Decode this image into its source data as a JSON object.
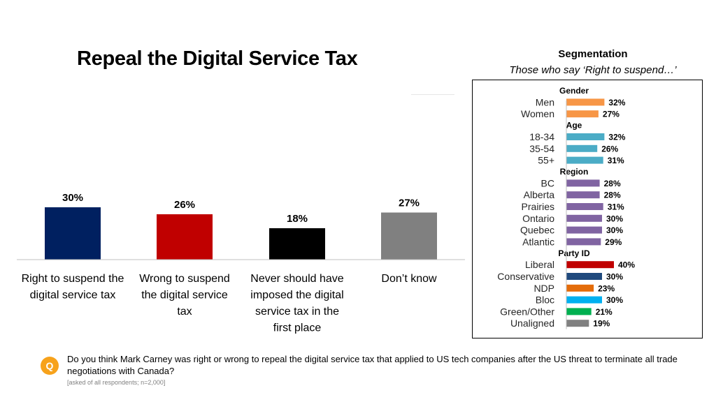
{
  "title": "Repeal the Digital Service Tax",
  "segmentation": {
    "heading": "Segmentation",
    "subheading": "Those who say ‘Right to suspend…’"
  },
  "question": {
    "icon_letter": "Q",
    "text": "Do you think Mark Carney was right or wrong to repeal the digital service tax that applied to US tech companies after the US threat to terminate all trade negotiations with Canada?",
    "note": "[asked of all respondents; n=2,000]"
  },
  "chart_data": [
    {
      "type": "bar",
      "categories": [
        [
          "Right to suspend the",
          "digital service tax"
        ],
        [
          "Wrong to suspend",
          "the digital service",
          "tax"
        ],
        [
          "Never should have",
          "imposed the digital",
          "service tax in the",
          "first place"
        ],
        [
          "Don’t know"
        ]
      ],
      "values": [
        30,
        26,
        18,
        27
      ],
      "labels": [
        "30%",
        "26%",
        "18%",
        "27%"
      ],
      "colors": [
        "#002060",
        "#c00000",
        "#000000",
        "#808080"
      ],
      "ylim": [
        0,
        40
      ]
    },
    {
      "type": "bar",
      "orientation": "horizontal",
      "xlim": [
        0,
        40
      ],
      "groups": [
        {
          "name": "Gender",
          "color": "#f79646",
          "items": [
            {
              "label": "Men",
              "value": 32,
              "text": "32%"
            },
            {
              "label": "Women",
              "value": 27,
              "text": "27%"
            }
          ]
        },
        {
          "name": "Age",
          "color": "#4bacc6",
          "items": [
            {
              "label": "18-34",
              "value": 32,
              "text": "32%"
            },
            {
              "label": "35-54",
              "value": 26,
              "text": "26%"
            },
            {
              "label": "55+",
              "value": 31,
              "text": "31%"
            }
          ]
        },
        {
          "name": "Region",
          "color": "#8064a2",
          "items": [
            {
              "label": "BC",
              "value": 28,
              "text": "28%"
            },
            {
              "label": "Alberta",
              "value": 28,
              "text": "28%"
            },
            {
              "label": "Prairies",
              "value": 31,
              "text": "31%"
            },
            {
              "label": "Ontario",
              "value": 30,
              "text": "30%"
            },
            {
              "label": "Quebec",
              "value": 30,
              "text": "30%"
            },
            {
              "label": "Atlantic",
              "value": 29,
              "text": "29%"
            }
          ]
        },
        {
          "name": "Party ID",
          "color": null,
          "items": [
            {
              "label": "Liberal",
              "value": 40,
              "text": "40%",
              "color": "#c00000"
            },
            {
              "label": "Conservative",
              "value": 30,
              "text": "30%",
              "color": "#1f497d"
            },
            {
              "label": "NDP",
              "value": 23,
              "text": "23%",
              "color": "#e46c0a"
            },
            {
              "label": "Bloc",
              "value": 30,
              "text": "30%",
              "color": "#00b0f0"
            },
            {
              "label": "Green/Other",
              "value": 21,
              "text": "21%",
              "color": "#00b050"
            },
            {
              "label": "Unaligned",
              "value": 19,
              "text": "19%",
              "color": "#808080"
            }
          ]
        }
      ]
    }
  ]
}
